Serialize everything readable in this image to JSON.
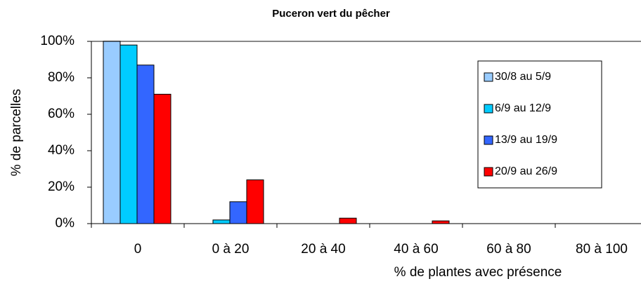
{
  "chart_data": {
    "type": "bar",
    "title": "Puceron vert du pêcher",
    "x_label": "% de plantes avec présence",
    "y_label": "% de parcelles",
    "categories": [
      "0",
      "0 à 20",
      "20 à 40",
      "40 à 60",
      "60 à 80",
      "80 à 100"
    ],
    "series": [
      {
        "name": "30/8 au 5/9",
        "color": "#99ccff",
        "values": [
          100,
          0,
          0,
          0,
          0,
          0
        ]
      },
      {
        "name": "6/9 au 12/9",
        "color": "#00ccff",
        "values": [
          98,
          2,
          0,
          0,
          0,
          0
        ]
      },
      {
        "name": "13/9 au 19/9",
        "color": "#3366ff",
        "values": [
          87,
          12,
          0,
          0,
          0,
          0
        ]
      },
      {
        "name": "20/9 au 26/9",
        "color": "#ff0000",
        "values": [
          71,
          24,
          3,
          1.5,
          0,
          0
        ]
      }
    ],
    "ylim": [
      0,
      100
    ],
    "yticks": [
      {
        "value": 0,
        "label": "0%"
      },
      {
        "value": 20,
        "label": "20%"
      },
      {
        "value": 40,
        "label": "40%"
      },
      {
        "value": 60,
        "label": "60%"
      },
      {
        "value": 80,
        "label": "80%"
      },
      {
        "value": 100,
        "label": "100%"
      }
    ],
    "grid": false,
    "legend": "right"
  }
}
